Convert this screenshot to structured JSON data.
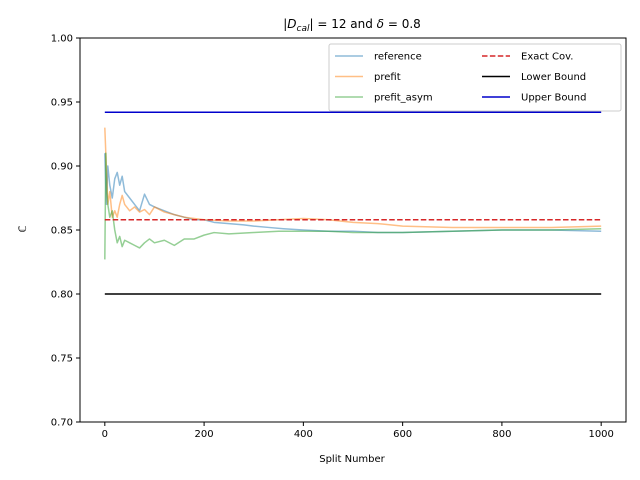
{
  "chart_data": {
    "type": "line",
    "title_parts": [
      "|",
      "D",
      "cal",
      "| = 12 and ",
      "δ",
      " = 0.8"
    ],
    "xlabel": "Split Number",
    "ylabel": "ℂ̄",
    "xlim": [
      -50,
      1050
    ],
    "ylim": [
      0.7,
      1.0
    ],
    "xticks": [
      0,
      200,
      400,
      600,
      800,
      1000
    ],
    "xtick_labels": [
      "0",
      "200",
      "400",
      "600",
      "800",
      "1000"
    ],
    "yticks": [
      0.7,
      0.75,
      0.8,
      0.85,
      0.9,
      0.95,
      1.0
    ],
    "ytick_labels": [
      "0.70",
      "0.75",
      "0.80",
      "0.85",
      "0.90",
      "0.95",
      "1.00"
    ],
    "grid": false,
    "legend_position": "upper-right",
    "series": [
      {
        "name": "reference",
        "style": "solid",
        "color": "#1f77b4",
        "alpha": 0.5,
        "points": [
          [
            0,
            0.91
          ],
          [
            3,
            0.87
          ],
          [
            6,
            0.9
          ],
          [
            10,
            0.885
          ],
          [
            15,
            0.875
          ],
          [
            20,
            0.89
          ],
          [
            25,
            0.895
          ],
          [
            30,
            0.885
          ],
          [
            35,
            0.892
          ],
          [
            40,
            0.88
          ],
          [
            50,
            0.875
          ],
          [
            60,
            0.87
          ],
          [
            70,
            0.865
          ],
          [
            80,
            0.878
          ],
          [
            90,
            0.87
          ],
          [
            100,
            0.868
          ],
          [
            120,
            0.865
          ],
          [
            140,
            0.862
          ],
          [
            160,
            0.86
          ],
          [
            180,
            0.858
          ],
          [
            200,
            0.858
          ],
          [
            220,
            0.856
          ],
          [
            250,
            0.855
          ],
          [
            280,
            0.854
          ],
          [
            300,
            0.853
          ],
          [
            330,
            0.852
          ],
          [
            360,
            0.851
          ],
          [
            400,
            0.85
          ],
          [
            450,
            0.849
          ],
          [
            500,
            0.849
          ],
          [
            550,
            0.848
          ],
          [
            600,
            0.848
          ],
          [
            700,
            0.849
          ],
          [
            800,
            0.85
          ],
          [
            900,
            0.85
          ],
          [
            1000,
            0.849
          ]
        ]
      },
      {
        "name": "prefit",
        "style": "solid",
        "color": "#ff7f0e",
        "alpha": 0.5,
        "points": [
          [
            0,
            0.93
          ],
          [
            3,
            0.9
          ],
          [
            6,
            0.87
          ],
          [
            10,
            0.88
          ],
          [
            15,
            0.86
          ],
          [
            20,
            0.865
          ],
          [
            25,
            0.86
          ],
          [
            30,
            0.87
          ],
          [
            35,
            0.877
          ],
          [
            40,
            0.87
          ],
          [
            50,
            0.865
          ],
          [
            60,
            0.868
          ],
          [
            70,
            0.864
          ],
          [
            80,
            0.866
          ],
          [
            90,
            0.862
          ],
          [
            100,
            0.868
          ],
          [
            120,
            0.864
          ],
          [
            140,
            0.862
          ],
          [
            160,
            0.86
          ],
          [
            180,
            0.859
          ],
          [
            200,
            0.858
          ],
          [
            250,
            0.857
          ],
          [
            300,
            0.857
          ],
          [
            350,
            0.858
          ],
          [
            400,
            0.859
          ],
          [
            450,
            0.858
          ],
          [
            500,
            0.856
          ],
          [
            550,
            0.855
          ],
          [
            600,
            0.853
          ],
          [
            700,
            0.852
          ],
          [
            800,
            0.852
          ],
          [
            900,
            0.852
          ],
          [
            1000,
            0.853
          ]
        ]
      },
      {
        "name": "prefit_asym",
        "style": "solid",
        "color": "#2ca02c",
        "alpha": 0.5,
        "points": [
          [
            0,
            0.827
          ],
          [
            2,
            0.91
          ],
          [
            4,
            0.88
          ],
          [
            6,
            0.87
          ],
          [
            10,
            0.86
          ],
          [
            15,
            0.865
          ],
          [
            20,
            0.85
          ],
          [
            25,
            0.84
          ],
          [
            30,
            0.845
          ],
          [
            35,
            0.837
          ],
          [
            40,
            0.842
          ],
          [
            50,
            0.84
          ],
          [
            60,
            0.838
          ],
          [
            70,
            0.836
          ],
          [
            80,
            0.84
          ],
          [
            90,
            0.843
          ],
          [
            100,
            0.84
          ],
          [
            120,
            0.842
          ],
          [
            140,
            0.838
          ],
          [
            160,
            0.843
          ],
          [
            180,
            0.843
          ],
          [
            200,
            0.846
          ],
          [
            220,
            0.848
          ],
          [
            250,
            0.847
          ],
          [
            300,
            0.848
          ],
          [
            350,
            0.849
          ],
          [
            400,
            0.849
          ],
          [
            450,
            0.849
          ],
          [
            500,
            0.848
          ],
          [
            600,
            0.848
          ],
          [
            700,
            0.849
          ],
          [
            800,
            0.85
          ],
          [
            900,
            0.85
          ],
          [
            1000,
            0.851
          ]
        ]
      },
      {
        "name": "Exact Cov.",
        "style": "dashed",
        "color": "#d62728",
        "alpha": 1,
        "points": [
          [
            0,
            0.858
          ],
          [
            1000,
            0.858
          ]
        ]
      },
      {
        "name": "Lower Bound",
        "style": "solid",
        "color": "#000000",
        "alpha": 1,
        "points": [
          [
            0,
            0.8
          ],
          [
            1000,
            0.8
          ]
        ]
      },
      {
        "name": "Upper Bound",
        "style": "solid",
        "color": "#0000cc",
        "alpha": 1,
        "points": [
          [
            0,
            0.942
          ],
          [
            1000,
            0.942
          ]
        ]
      }
    ]
  }
}
